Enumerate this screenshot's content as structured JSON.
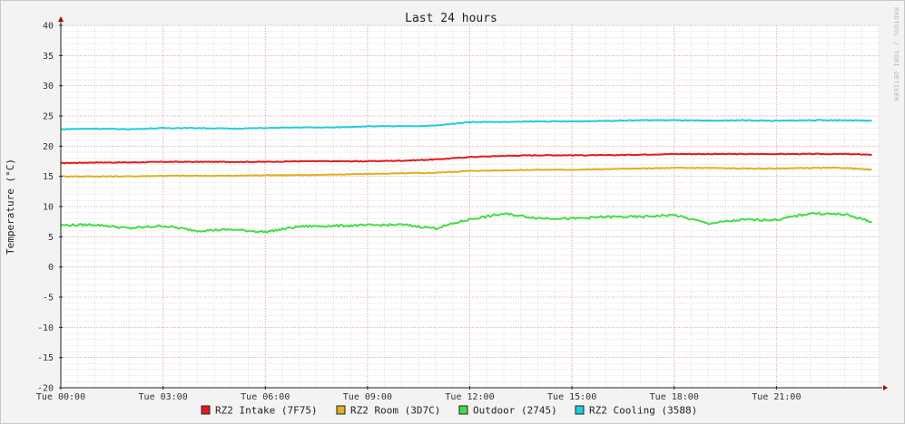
{
  "chart_data": {
    "type": "line",
    "title": "Last 24 hours",
    "ylabel": "Temperature (°C)",
    "xlabel": "",
    "watermark": "RRDTOOL / TOBI OETIKER",
    "ylim": [
      -20,
      40
    ],
    "yticks": [
      40,
      35,
      30,
      25,
      20,
      15,
      10,
      5,
      0,
      -5,
      -10,
      -15,
      -20
    ],
    "xlim": [
      0,
      24
    ],
    "x_tick_hours": [
      0,
      3,
      6,
      9,
      12,
      15,
      18,
      21
    ],
    "x_tick_labels": [
      "Tue 00:00",
      "Tue 03:00",
      "Tue 06:00",
      "Tue 09:00",
      "Tue 12:00",
      "Tue 15:00",
      "Tue 18:00",
      "Tue 21:00"
    ],
    "grid": true,
    "legend_position": "bottom",
    "x": [
      0,
      1,
      2,
      3,
      4,
      5,
      6,
      7,
      8,
      9,
      10,
      11,
      12,
      13,
      14,
      15,
      16,
      17,
      18,
      19,
      20,
      21,
      22,
      23,
      23.8
    ],
    "series": [
      {
        "name": "RZ2 Intake (7F75)",
        "color": "#e31a1c",
        "values": [
          17.2,
          17.3,
          17.3,
          17.4,
          17.4,
          17.4,
          17.4,
          17.5,
          17.5,
          17.5,
          17.6,
          17.8,
          18.2,
          18.4,
          18.5,
          18.5,
          18.5,
          18.6,
          18.7,
          18.7,
          18.7,
          18.7,
          18.7,
          18.7,
          18.6
        ]
      },
      {
        "name": "RZ2 Room (3D7C)",
        "color": "#e0b020",
        "values": [
          15.0,
          15.0,
          15.0,
          15.1,
          15.1,
          15.1,
          15.2,
          15.2,
          15.3,
          15.4,
          15.5,
          15.6,
          15.9,
          16.0,
          16.1,
          16.1,
          16.2,
          16.3,
          16.4,
          16.4,
          16.3,
          16.3,
          16.4,
          16.4,
          16.1
        ]
      },
      {
        "name": "Outdoor (2745)",
        "color": "#44dd44",
        "values": [
          6.9,
          7.0,
          6.4,
          6.8,
          6.0,
          6.2,
          5.8,
          6.7,
          6.8,
          6.9,
          7.0,
          6.4,
          7.9,
          8.8,
          8.1,
          8.0,
          8.3,
          8.3,
          8.6,
          7.2,
          7.8,
          7.8,
          8.9,
          8.7,
          7.5
        ]
      },
      {
        "name": "RZ2 Cooling (3588)",
        "color": "#22ccdd",
        "values": [
          22.8,
          22.9,
          22.8,
          23.0,
          23.0,
          22.9,
          23.0,
          23.1,
          23.1,
          23.3,
          23.3,
          23.4,
          24.0,
          24.0,
          24.1,
          24.1,
          24.2,
          24.3,
          24.3,
          24.2,
          24.3,
          24.2,
          24.3,
          24.3,
          24.2
        ]
      }
    ]
  }
}
